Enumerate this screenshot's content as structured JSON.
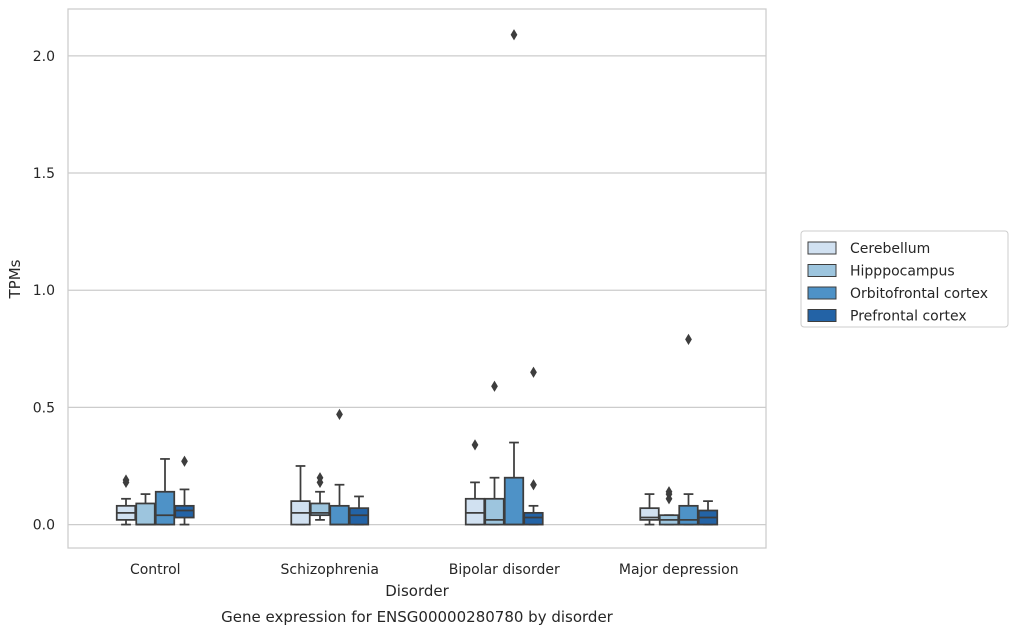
{
  "caption": "Gene expression for ENSG00000280780 by disorder",
  "chart_data": {
    "type": "box",
    "xlabel": "Disorder",
    "ylabel": "TPMs",
    "ylim": [
      -0.1,
      2.2
    ],
    "yticks": [
      0.0,
      0.5,
      1.0,
      1.5,
      2.0
    ],
    "ytick_labels": [
      "0.0",
      "0.5",
      "1.0",
      "1.5",
      "2.0"
    ],
    "grid": "horizontal",
    "legend_position": "right",
    "categories": [
      "Control",
      "Schizophrenia",
      "Bipolar disorder",
      "Major depression"
    ],
    "series": [
      {
        "name": "Cerebellum",
        "color": "#d1e1f1",
        "boxes": [
          {
            "whislo": 0.0,
            "q1": 0.02,
            "med": 0.05,
            "q3": 0.08,
            "whishi": 0.11,
            "fliers": [
              0.18,
              0.19
            ]
          },
          {
            "whislo": 0.0,
            "q1": 0.0,
            "med": 0.05,
            "q3": 0.1,
            "whishi": 0.25,
            "fliers": []
          },
          {
            "whislo": 0.0,
            "q1": 0.0,
            "med": 0.05,
            "q3": 0.11,
            "whishi": 0.18,
            "fliers": [
              0.34
            ]
          },
          {
            "whislo": 0.0,
            "q1": 0.02,
            "med": 0.03,
            "q3": 0.07,
            "whishi": 0.13,
            "fliers": []
          }
        ]
      },
      {
        "name": "Hipppocampus",
        "color": "#9dc5de",
        "boxes": [
          {
            "whislo": 0.0,
            "q1": 0.0,
            "med": 0.0,
            "q3": 0.09,
            "whishi": 0.13,
            "fliers": []
          },
          {
            "whislo": 0.02,
            "q1": 0.04,
            "med": 0.05,
            "q3": 0.09,
            "whishi": 0.14,
            "fliers": [
              0.18,
              0.2
            ]
          },
          {
            "whislo": 0.0,
            "q1": 0.0,
            "med": 0.02,
            "q3": 0.11,
            "whishi": 0.2,
            "fliers": [
              0.59
            ]
          },
          {
            "whislo": 0.0,
            "q1": 0.0,
            "med": 0.02,
            "q3": 0.04,
            "whishi": 0.04,
            "fliers": [
              0.11,
              0.13,
              0.14
            ]
          }
        ]
      },
      {
        "name": "Orbitofrontal cortex",
        "color": "#4e92c7",
        "boxes": [
          {
            "whislo": 0.0,
            "q1": 0.0,
            "med": 0.04,
            "q3": 0.14,
            "whishi": 0.28,
            "fliers": []
          },
          {
            "whislo": 0.0,
            "q1": 0.0,
            "med": 0.0,
            "q3": 0.08,
            "whishi": 0.17,
            "fliers": [
              0.47
            ]
          },
          {
            "whislo": 0.0,
            "q1": 0.0,
            "med": 0.0,
            "q3": 0.2,
            "whishi": 0.35,
            "fliers": [
              2.09
            ]
          },
          {
            "whislo": 0.0,
            "q1": 0.0,
            "med": 0.02,
            "q3": 0.08,
            "whishi": 0.13,
            "fliers": [
              0.79
            ]
          }
        ]
      },
      {
        "name": "Prefrontal cortex",
        "color": "#2363a6",
        "boxes": [
          {
            "whislo": 0.0,
            "q1": 0.03,
            "med": 0.06,
            "q3": 0.08,
            "whishi": 0.15,
            "fliers": [
              0.27
            ]
          },
          {
            "whislo": 0.0,
            "q1": 0.0,
            "med": 0.04,
            "q3": 0.07,
            "whishi": 0.12,
            "fliers": []
          },
          {
            "whislo": 0.0,
            "q1": 0.0,
            "med": 0.03,
            "q3": 0.05,
            "whishi": 0.08,
            "fliers": [
              0.17,
              0.65
            ]
          },
          {
            "whislo": 0.0,
            "q1": 0.0,
            "med": 0.03,
            "q3": 0.06,
            "whishi": 0.1,
            "fliers": []
          }
        ]
      }
    ]
  }
}
